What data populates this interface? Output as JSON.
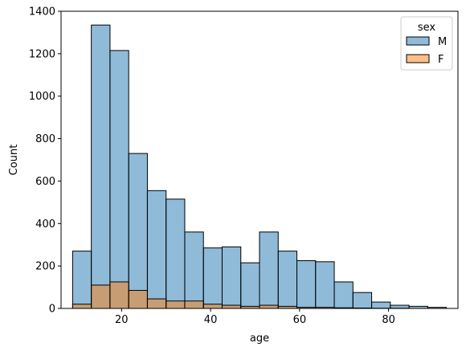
{
  "chart_data": {
    "type": "bar",
    "xlabel": "age",
    "ylabel": "Count",
    "xlim": [
      6.4,
      95.6
    ],
    "ylim": [
      0,
      1400
    ],
    "x_ticks": [
      20,
      40,
      60,
      80
    ],
    "y_ticks": [
      0,
      200,
      400,
      600,
      800,
      1000,
      1200,
      1400
    ],
    "bin_edges": [
      9,
      13.2,
      17.4,
      21.6,
      25.8,
      30,
      34.2,
      38.4,
      42.6,
      46.8,
      51,
      55.2,
      59.4,
      63.6,
      67.8,
      72,
      76.2,
      80.4,
      84.6,
      88.8,
      93
    ],
    "legend": {
      "title": "sex",
      "placement": "top-right"
    },
    "series": [
      {
        "name": "M",
        "color": "#1f77b4",
        "values": [
          270,
          1335,
          1215,
          730,
          555,
          515,
          360,
          285,
          290,
          215,
          360,
          270,
          225,
          220,
          125,
          75,
          30,
          15,
          10,
          5
        ]
      },
      {
        "name": "F",
        "color": "#ff7f0e",
        "values": [
          20,
          110,
          125,
          85,
          45,
          35,
          35,
          20,
          15,
          10,
          15,
          10,
          5,
          5,
          3,
          2,
          1,
          1,
          0,
          0
        ]
      }
    ]
  }
}
